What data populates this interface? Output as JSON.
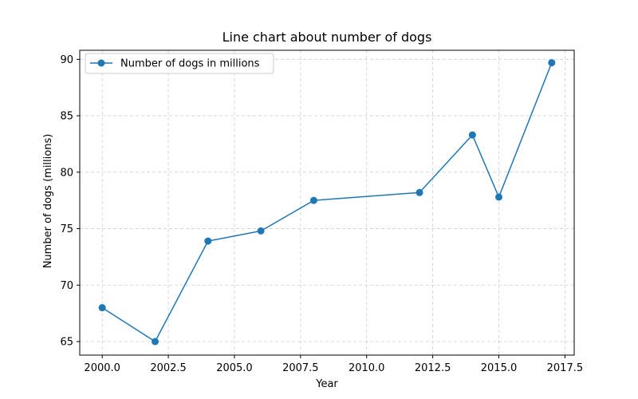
{
  "chart_data": {
    "type": "line",
    "title": "Line chart about number of dogs",
    "xlabel": "Year",
    "ylabel": "Number of dogs (millions)",
    "xlim": [
      1999.15,
      2017.85
    ],
    "ylim": [
      63.8,
      90.8
    ],
    "x_ticks": [
      2000,
      2002.5,
      2005,
      2007.5,
      2010,
      2012.5,
      2015,
      2017.5
    ],
    "x_tick_labels": [
      "2000.0",
      "2002.5",
      "2005.0",
      "2007.5",
      "2010.0",
      "2012.5",
      "2015.0",
      "2017.5"
    ],
    "y_ticks": [
      65,
      70,
      75,
      80,
      85,
      90
    ],
    "y_tick_labels": [
      "65",
      "70",
      "75",
      "80",
      "85",
      "90"
    ],
    "grid": true,
    "legend_position": "top-left",
    "series": [
      {
        "name": "Number of dogs in millions",
        "color": "#1f77b4",
        "marker": "circle",
        "x": [
          2000,
          2002,
          2004,
          2006,
          2008,
          2012,
          2014,
          2015,
          2017
        ],
        "y": [
          68.0,
          65.0,
          73.9,
          74.8,
          77.5,
          78.2,
          83.3,
          77.8,
          89.7
        ]
      }
    ]
  }
}
